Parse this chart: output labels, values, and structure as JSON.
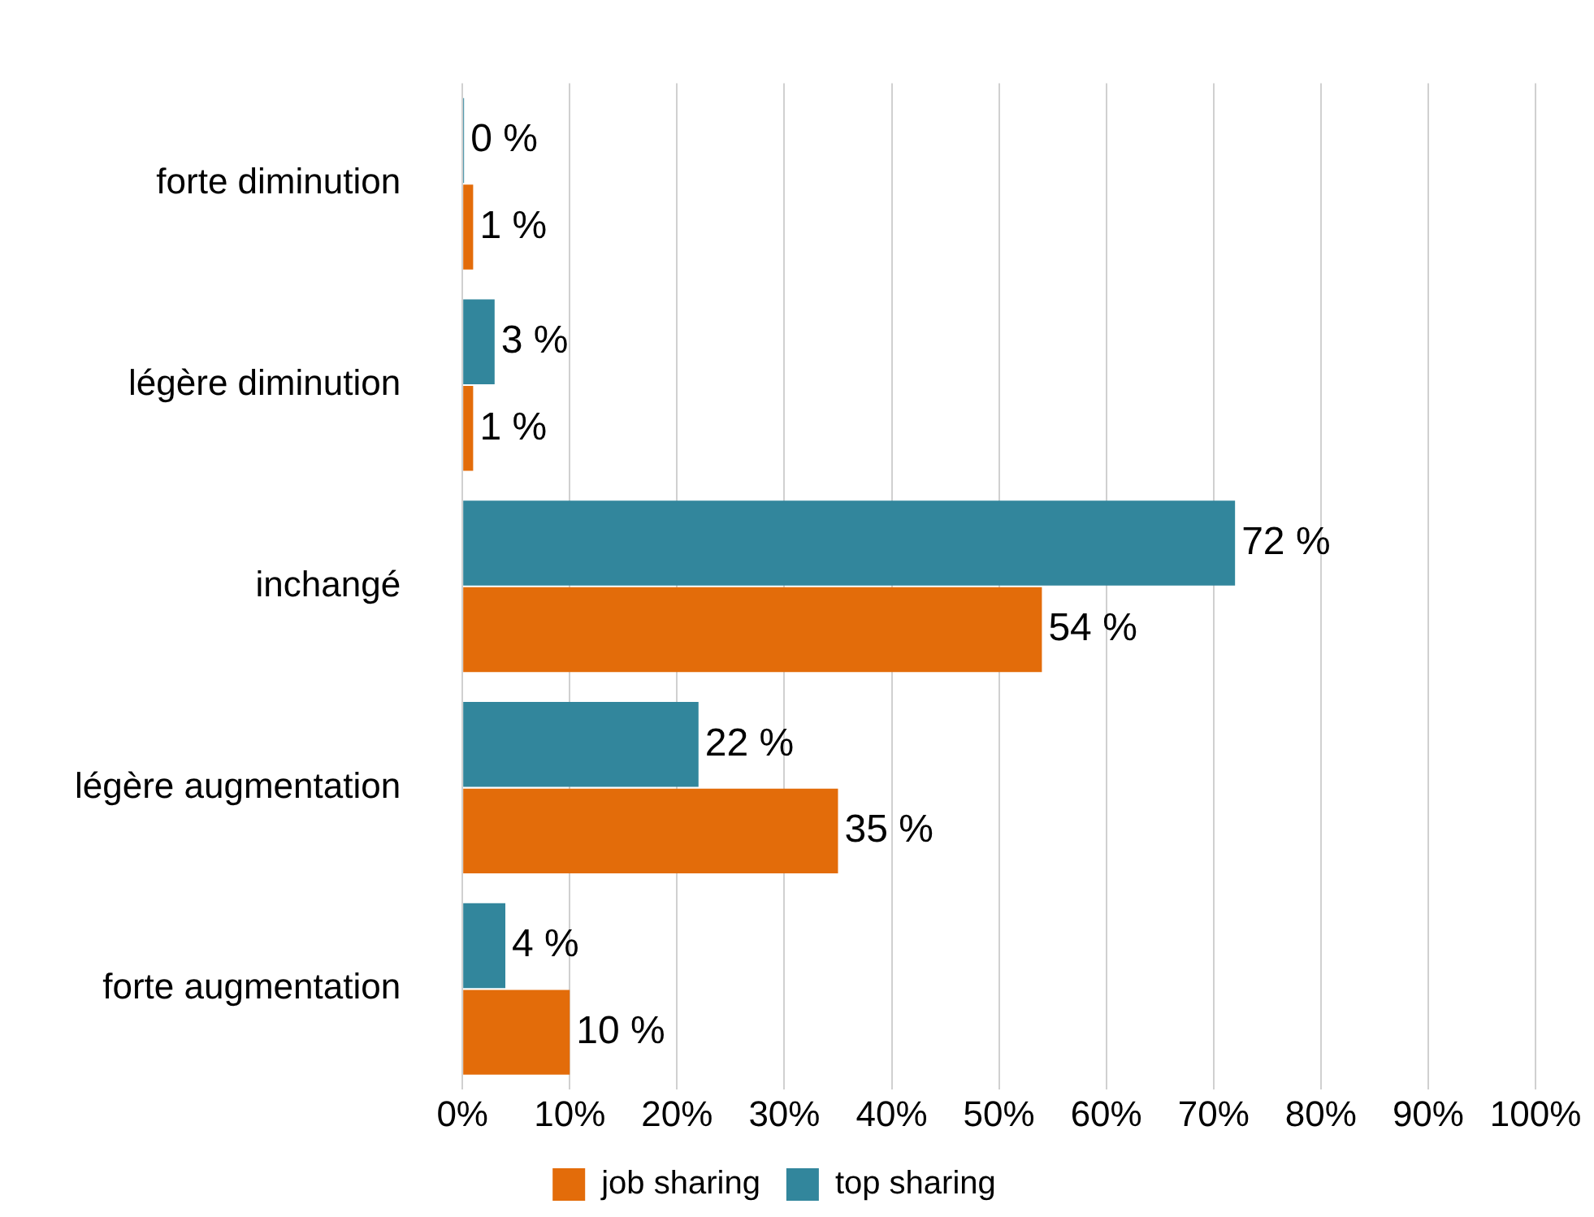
{
  "chart_data": {
    "type": "bar",
    "orientation": "horizontal",
    "categories": [
      "forte diminution",
      "légère diminution",
      "inchangé",
      "légère augmentation",
      "forte augmentation"
    ],
    "series": [
      {
        "name": "top sharing",
        "color": "#32869c",
        "values": [
          0,
          3,
          72,
          22,
          4
        ],
        "value_labels": [
          "0 %",
          "3 %",
          "72 %",
          "22 %",
          "4 %"
        ]
      },
      {
        "name": "job sharing",
        "color": "#e36c0a",
        "values": [
          1,
          1,
          54,
          35,
          10
        ],
        "value_labels": [
          "1 %",
          "1 %",
          "54 %",
          "35 %",
          "10 %"
        ]
      }
    ],
    "xlim": [
      0,
      100
    ],
    "xticks": [
      {
        "value": 0,
        "label": "0%"
      },
      {
        "value": 10,
        "label": "10%"
      },
      {
        "value": 20,
        "label": "20%"
      },
      {
        "value": 30,
        "label": "30%"
      },
      {
        "value": 40,
        "label": "40%"
      },
      {
        "value": 50,
        "label": "50%"
      },
      {
        "value": 60,
        "label": "60%"
      },
      {
        "value": 70,
        "label": "70%"
      },
      {
        "value": 80,
        "label": "80%"
      },
      {
        "value": 90,
        "label": "90%"
      },
      {
        "value": 100,
        "label": "100%"
      }
    ],
    "grid": "x",
    "legend": "bottom"
  }
}
